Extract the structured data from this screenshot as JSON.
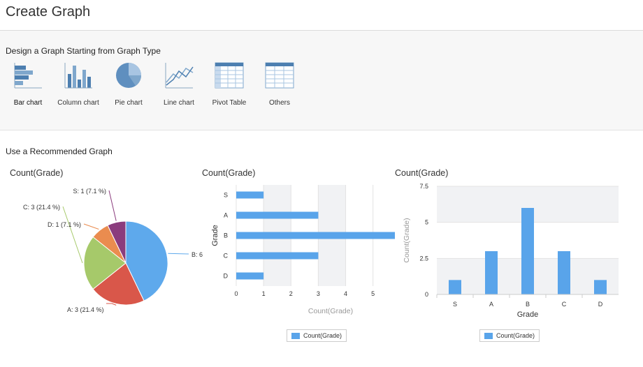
{
  "page": {
    "title": "Create Graph"
  },
  "design_section": {
    "title": "Design a Graph Starting from Graph Type",
    "types": [
      {
        "label": "Bar chart",
        "icon": "bar-chart-icon",
        "selected": true
      },
      {
        "label": "Column chart",
        "icon": "column-chart-icon",
        "selected": false
      },
      {
        "label": "Pie chart",
        "icon": "pie-chart-icon",
        "selected": false
      },
      {
        "label": "Line chart",
        "icon": "line-chart-icon",
        "selected": false
      },
      {
        "label": "Pivot Table",
        "icon": "pivot-table-icon",
        "selected": false
      },
      {
        "label": "Others",
        "icon": "table-icon",
        "selected": false
      }
    ]
  },
  "recommended_section": {
    "title": "Use a Recommended Graph"
  },
  "colors": {
    "series": "#59a4ea",
    "pie": [
      "#5ea9ec",
      "#d9574a",
      "#a6c96a",
      "#ea8c4f",
      "#8b3c7d"
    ]
  },
  "chart_data": [
    {
      "type": "pie",
      "title": "Count(Grade)",
      "slices": [
        {
          "label": "B",
          "value": 6,
          "text": "B: 6"
        },
        {
          "label": "A",
          "value": 3,
          "text": "A: 3 (21.4 %)"
        },
        {
          "label": "C",
          "value": 3,
          "text": "C: 3 (21.4 %)"
        },
        {
          "label": "D",
          "value": 1,
          "text": "D: 1 (7.1 %)"
        },
        {
          "label": "S",
          "value": 1,
          "text": "S: 1 (7.1 %)"
        }
      ]
    },
    {
      "type": "bar",
      "orientation": "horizontal",
      "title": "Count(Grade)",
      "categories": [
        "S",
        "A",
        "B",
        "C",
        "D"
      ],
      "values": [
        1,
        3,
        6,
        3,
        1
      ],
      "xlabel": "Count(Grade)",
      "ylabel": "Grade",
      "xticks": [
        "0",
        "1",
        "2",
        "3",
        "4",
        "5"
      ],
      "xlim": [
        0,
        5.8
      ],
      "legend": "Count(Grade)"
    },
    {
      "type": "bar",
      "orientation": "vertical",
      "title": "Count(Grade)",
      "categories": [
        "S",
        "A",
        "B",
        "C",
        "D"
      ],
      "values": [
        1,
        3,
        6,
        3,
        1
      ],
      "xlabel": "Grade",
      "ylabel": "Count(Grade)",
      "yticks": [
        "0",
        "2.5",
        "5",
        "7.5"
      ],
      "ylim": [
        0,
        7.5
      ],
      "legend": "Count(Grade)"
    }
  ]
}
